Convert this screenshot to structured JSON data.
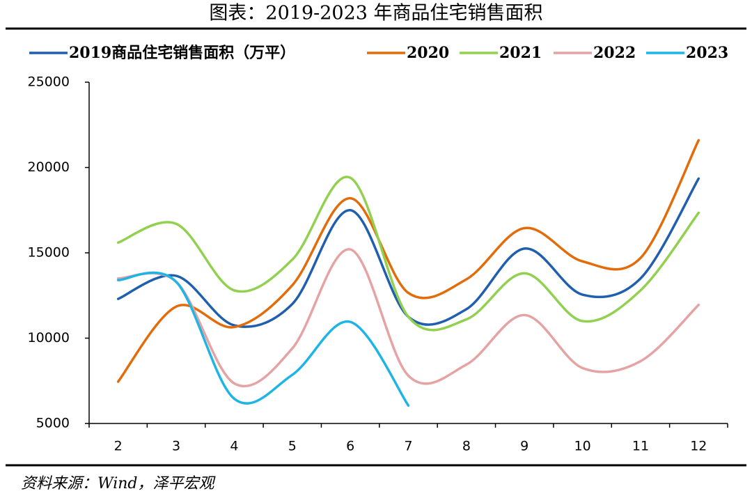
{
  "chart_data": {
    "type": "line",
    "title": "图表：2019-2023 年商品住宅销售面积",
    "source": "资料来源：Wind，泽平宏观",
    "categories": [
      "2",
      "3",
      "4",
      "5",
      "6",
      "7",
      "8",
      "9",
      "10",
      "11",
      "12"
    ],
    "ylim": [
      5000,
      25000
    ],
    "yticks": [
      5000,
      10000,
      15000,
      20000,
      25000
    ],
    "series": [
      {
        "name": "2019商品住宅销售面积（万平）",
        "color": "#1f5fae",
        "values": [
          12300,
          13650,
          10750,
          12000,
          17500,
          11250,
          11700,
          15250,
          12550,
          13500,
          19350
        ]
      },
      {
        "name": "2020",
        "color": "#e36c0a",
        "values": [
          7450,
          11850,
          10650,
          13100,
          18200,
          12650,
          13450,
          16450,
          14500,
          14700,
          21600
        ]
      },
      {
        "name": "2021",
        "color": "#92d050",
        "values": [
          15600,
          16700,
          12800,
          14600,
          19400,
          11250,
          11100,
          13800,
          11000,
          12800,
          17350
        ]
      },
      {
        "name": "2022",
        "color": "#e6a3a3",
        "values": [
          13500,
          13300,
          7350,
          9400,
          15200,
          7800,
          8450,
          11350,
          8250,
          8650,
          11950
        ]
      },
      {
        "name": "2023",
        "color": "#1fb4e6",
        "values": [
          13400,
          13300,
          6450,
          7850,
          10950,
          6050,
          null,
          null,
          null,
          null,
          null
        ]
      }
    ]
  }
}
